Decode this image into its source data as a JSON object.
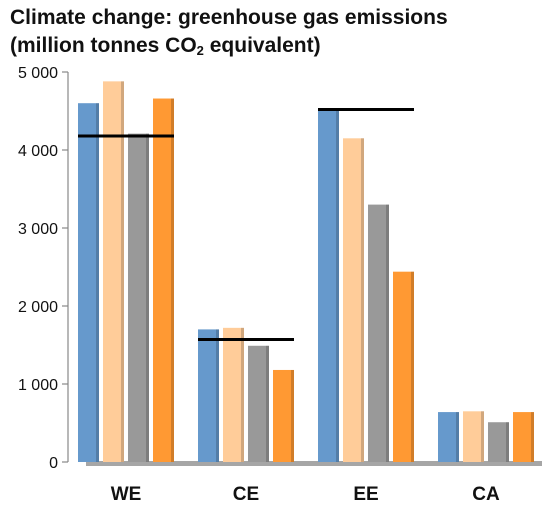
{
  "chart_data": {
    "type": "bar",
    "title_line1": "Climate change: greenhouse gas emissions",
    "title_line2_prefix": "(million tonnes CO",
    "title_line2_sub": "2",
    "title_line2_suffix": " equivalent)",
    "categories": [
      "WE",
      "CE",
      "EE",
      "CA"
    ],
    "series": [
      {
        "color": "#6699cc",
        "values": [
          4600,
          1700,
          4500,
          640
        ]
      },
      {
        "color": "#ffcc99",
        "values": [
          4880,
          1720,
          4150,
          650
        ]
      },
      {
        "color": "#999999",
        "values": [
          4210,
          1490,
          3300,
          510
        ]
      },
      {
        "color": "#ff9933",
        "values": [
          4660,
          1180,
          2440,
          640
        ]
      }
    ],
    "reference_lines": [
      {
        "category": "WE",
        "value": 4180
      },
      {
        "category": "CE",
        "value": 1570
      },
      {
        "category": "EE",
        "value": 4520
      }
    ],
    "ylim": [
      0,
      5000
    ],
    "yticks": [
      0,
      1000,
      2000,
      3000,
      4000,
      5000
    ],
    "ytick_labels": [
      "0",
      "1 000",
      "2 000",
      "3 000",
      "4 000",
      "5 000"
    ],
    "grid": false
  }
}
